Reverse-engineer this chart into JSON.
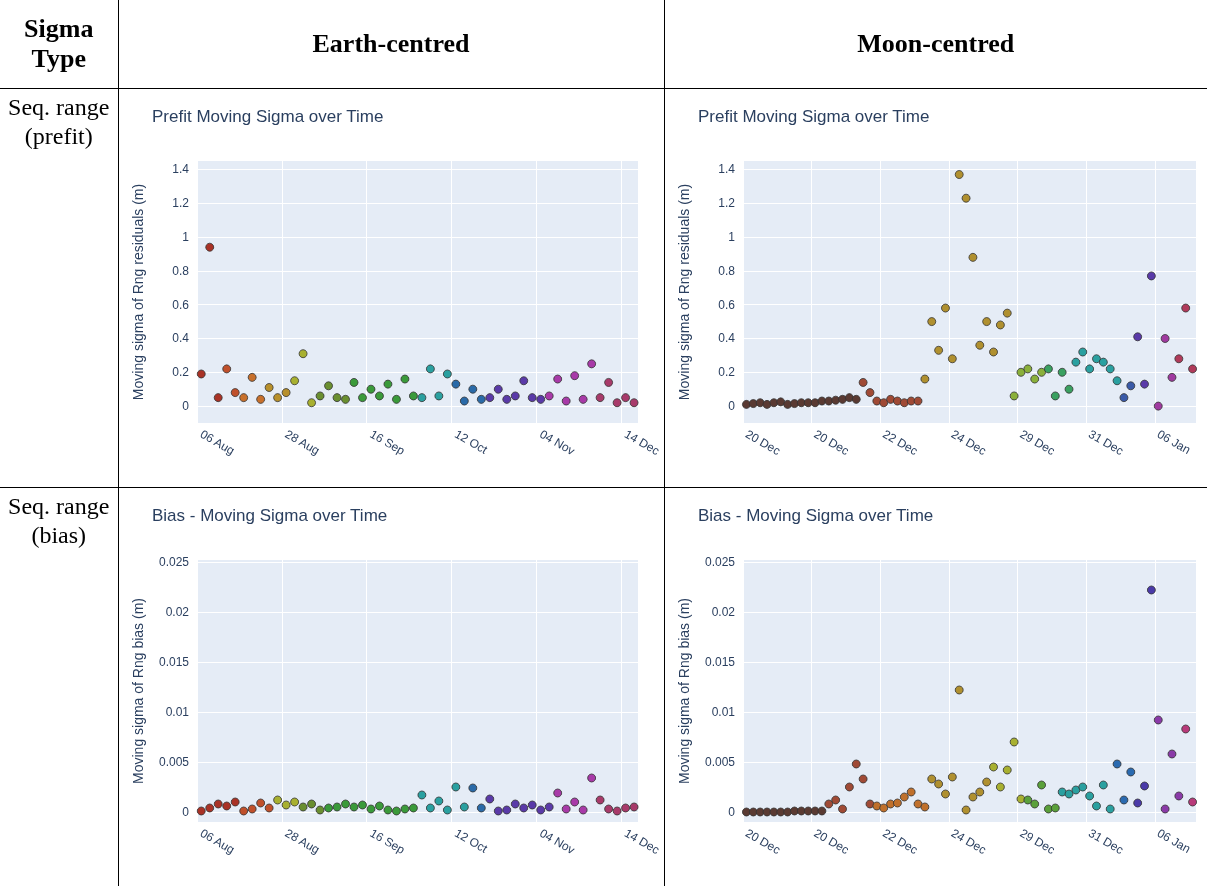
{
  "chart_data": [
    {
      "type": "other",
      "annotations": [
        "Sigma Type",
        "Earth-centred",
        "Moon-centred",
        "Seq. range (prefit)",
        "Seq. range (bias)"
      ]
    },
    {
      "type": "scatter",
      "title": "Prefit Moving Sigma over Time",
      "ylabel": "Moving sigma of Rng residuals (m)",
      "marker": "circle",
      "grid": true,
      "categories": [
        "06 Aug",
        null,
        null,
        null,
        null,
        null,
        null,
        null,
        null,
        null,
        "28 Aug",
        null,
        null,
        null,
        null,
        null,
        null,
        null,
        null,
        null,
        "16 Sep",
        null,
        null,
        null,
        null,
        null,
        null,
        null,
        null,
        null,
        "12 Oct",
        null,
        null,
        null,
        null,
        null,
        null,
        null,
        null,
        null,
        "04 Nov",
        null,
        null,
        null,
        null,
        null,
        null,
        null,
        null,
        null,
        "14 Dec",
        null
      ],
      "ylim": [
        -0.1,
        1.45
      ],
      "yticks": [
        0,
        0.2,
        0.4,
        0.6,
        0.8,
        1,
        1.2,
        1.4
      ],
      "values": [
        0.19,
        0.94,
        0.05,
        0.22,
        0.08,
        0.05,
        0.17,
        0.04,
        0.11,
        0.05,
        0.08,
        0.15,
        0.31,
        0.02,
        0.06,
        0.12,
        0.05,
        0.04,
        0.14,
        0.05,
        0.1,
        0.06,
        0.13,
        0.04,
        0.16,
        0.06,
        0.05,
        0.22,
        0.06,
        0.19,
        0.13,
        0.03,
        0.1,
        0.04,
        0.05,
        0.1,
        0.04,
        0.06,
        0.15,
        0.05,
        0.04,
        0.06,
        0.16,
        0.03,
        0.18,
        0.04,
        0.25,
        0.05,
        0.14,
        0.02,
        0.05,
        0.02
      ],
      "colors": [
        "#a93226",
        "#a93226",
        "#a93226",
        "#c0502b",
        "#c0502b",
        "#c8702b",
        "#c8702b",
        "#c8702b",
        "#b8902b",
        "#b8902b",
        "#b8902b",
        "#a8b030",
        "#a8b030",
        "#a8b030",
        "#6a8f30",
        "#6a8f30",
        "#6a8f30",
        "#6a8f30",
        "#3a9a3a",
        "#3a9a3a",
        "#3a9a3a",
        "#3a9a3a",
        "#3a9a3a",
        "#3a9a3a",
        "#3a9a3a",
        "#3a9a3a",
        "#2aa0a0",
        "#2aa0a0",
        "#2aa0a0",
        "#2aa0a0",
        "#2a6aa8",
        "#2a6aa8",
        "#2a6aa8",
        "#2a6aa8",
        "#5a3aa8",
        "#5a3aa8",
        "#5a3aa8",
        "#5a3aa8",
        "#5a3aa8",
        "#5a3aa8",
        "#5a3aa8",
        "#a83aa8",
        "#a83aa8",
        "#a83aa8",
        "#a83aa8",
        "#a83aa8",
        "#a83aa8",
        "#a83a6a",
        "#a83a6a",
        "#a83a6a",
        "#a83a6a",
        "#a83a6a"
      ]
    },
    {
      "type": "scatter",
      "title": "Prefit Moving Sigma over Time",
      "ylabel": "Moving sigma of Rng residuals (m)",
      "marker": "circle",
      "grid": true,
      "categories": [
        "20 Dec",
        null,
        null,
        null,
        null,
        null,
        null,
        null,
        null,
        null,
        "20 Dec",
        null,
        null,
        null,
        null,
        null,
        null,
        null,
        null,
        null,
        "22 Dec",
        null,
        null,
        null,
        null,
        null,
        null,
        null,
        null,
        null,
        "24 Dec",
        null,
        null,
        null,
        null,
        null,
        null,
        null,
        null,
        null,
        "29 Dec",
        null,
        null,
        null,
        null,
        null,
        null,
        null,
        null,
        null,
        "31 Dec",
        null,
        null,
        null,
        null,
        null,
        null,
        null,
        null,
        null,
        "06 Jan",
        null,
        null,
        null,
        null,
        null
      ],
      "ylim": [
        -0.1,
        1.45
      ],
      "yticks": [
        0,
        0.2,
        0.4,
        0.6,
        0.8,
        1,
        1.2,
        1.4
      ],
      "values": [
        0.01,
        0.015,
        0.02,
        0.01,
        0.02,
        0.025,
        0.01,
        0.015,
        0.02,
        0.02,
        0.02,
        0.03,
        0.03,
        0.035,
        0.04,
        0.05,
        0.04,
        0.14,
        0.08,
        0.03,
        0.02,
        0.04,
        0.03,
        0.02,
        0.03,
        0.03,
        0.16,
        0.5,
        0.33,
        0.58,
        0.28,
        1.37,
        1.23,
        0.88,
        0.36,
        0.5,
        0.32,
        0.48,
        0.55,
        0.06,
        0.2,
        0.22,
        0.16,
        0.2,
        0.22,
        0.06,
        0.2,
        0.1,
        0.26,
        0.32,
        0.22,
        0.28,
        0.26,
        0.22,
        0.15,
        0.05,
        0.12,
        0.41,
        0.13,
        0.77,
        0,
        0.4,
        0.17,
        0.28,
        0.58,
        0.22
      ],
      "colors": [
        "#5a3a32",
        "#5a3a32",
        "#5a3a32",
        "#5a3a32",
        "#5a3a32",
        "#5a3a32",
        "#5a3a32",
        "#5a3a32",
        "#5a3a32",
        "#5a3a32",
        "#5a3a32",
        "#5a3a32",
        "#5a3a32",
        "#5a3a32",
        "#5a3a32",
        "#5a3a32",
        "#5a3a32",
        "#a04a35",
        "#a04a35",
        "#a04a35",
        "#a04a35",
        "#a04a35",
        "#a04a35",
        "#a04a35",
        "#a04a35",
        "#a04a35",
        "#b0902f",
        "#b0902f",
        "#b0902f",
        "#b0902f",
        "#b0902f",
        "#b0902f",
        "#b0902f",
        "#b0902f",
        "#b0902f",
        "#b0902f",
        "#b0902f",
        "#b0902f",
        "#b0902f",
        "#8ab03a",
        "#8ab03a",
        "#8ab03a",
        "#8ab03a",
        "#8ab03a",
        "#3aa060",
        "#3aa060",
        "#3aa060",
        "#3aa060",
        "#2aa0a0",
        "#2aa0a0",
        "#2aa0a0",
        "#2aa0a0",
        "#2aa0a0",
        "#2aa0a0",
        "#2aa0a0",
        "#3a5aa8",
        "#3a5aa8",
        "#5a3aa8",
        "#5a3aa8",
        "#5a3aa8",
        "#a03aa0",
        "#a03aa0",
        "#a03aa0",
        "#b03a5a",
        "#b03a5a",
        "#b03a5a"
      ]
    },
    {
      "type": "scatter",
      "title": "Bias - Moving Sigma over Time",
      "ylabel": "Moving sigma of Rng bias (m)",
      "marker": "circle",
      "grid": true,
      "categories": [
        "06 Aug",
        null,
        null,
        null,
        null,
        null,
        null,
        null,
        null,
        null,
        "28 Aug",
        null,
        null,
        null,
        null,
        null,
        null,
        null,
        null,
        null,
        "16 Sep",
        null,
        null,
        null,
        null,
        null,
        null,
        null,
        null,
        null,
        "12 Oct",
        null,
        null,
        null,
        null,
        null,
        null,
        null,
        null,
        null,
        "04 Nov",
        null,
        null,
        null,
        null,
        null,
        null,
        null,
        null,
        null,
        "14 Dec",
        null
      ],
      "ylim": [
        -0.001,
        0.0252
      ],
      "yticks": [
        0,
        0.005,
        0.01,
        0.015,
        0.02,
        0.025
      ],
      "values": [
        0.0001,
        0.0004,
        0.0008,
        0.0006,
        0.001,
        0.0001,
        0.0003,
        0.0009,
        0.0004,
        0.0012,
        0.0007,
        0.001,
        0.0005,
        0.0008,
        0.0002,
        0.0004,
        0.0005,
        0.0008,
        0.0005,
        0.0007,
        0.0003,
        0.0006,
        0.0002,
        0.0001,
        0.0003,
        0.0004,
        0.0017,
        0.0004,
        0.0011,
        0.0002,
        0.0025,
        0.0005,
        0.0024,
        0.0004,
        0.0013,
        0.0001,
        0.0002,
        0.0008,
        0.0004,
        0.0007,
        0.0002,
        0.0005,
        0.0019,
        0.0003,
        0.001,
        0.0002,
        0.0034,
        0.0012,
        0.0003,
        0.0001,
        0.0004,
        0.0005
      ],
      "colors": [
        "#a93226",
        "#a93226",
        "#a93226",
        "#a93226",
        "#a93226",
        "#c0502b",
        "#c0502b",
        "#c0502b",
        "#c0502b",
        "#a8b030",
        "#a8b030",
        "#a8b030",
        "#6a8f30",
        "#6a8f30",
        "#6a8f30",
        "#3a9a3a",
        "#3a9a3a",
        "#3a9a3a",
        "#3a9a3a",
        "#3a9a3a",
        "#3a9a3a",
        "#3a9a3a",
        "#3a9a3a",
        "#3a9a3a",
        "#3a9a3a",
        "#3a9a3a",
        "#2aa0a0",
        "#2aa0a0",
        "#2aa0a0",
        "#2aa0a0",
        "#2aa0a0",
        "#2aa0a0",
        "#2a6aa8",
        "#2a6aa8",
        "#5a3aa8",
        "#5a3aa8",
        "#5a3aa8",
        "#5a3aa8",
        "#5a3aa8",
        "#5a3aa8",
        "#5a3aa8",
        "#5a3aa8",
        "#a83aa8",
        "#a83aa8",
        "#a83aa8",
        "#a83aa8",
        "#a83aa8",
        "#a83a6a",
        "#a83a6a",
        "#a83a6a",
        "#a83a6a",
        "#a83a6a"
      ]
    },
    {
      "type": "scatter",
      "title": "Bias - Moving Sigma over Time",
      "ylabel": "Moving sigma of Rng bias (m)",
      "marker": "circle",
      "grid": true,
      "categories": [
        "20 Dec",
        null,
        null,
        null,
        null,
        null,
        null,
        null,
        null,
        null,
        "20 Dec",
        null,
        null,
        null,
        null,
        null,
        null,
        null,
        null,
        null,
        "22 Dec",
        null,
        null,
        null,
        null,
        null,
        null,
        null,
        null,
        null,
        "24 Dec",
        null,
        null,
        null,
        null,
        null,
        null,
        null,
        null,
        null,
        "29 Dec",
        null,
        null,
        null,
        null,
        null,
        null,
        null,
        null,
        null,
        "31 Dec",
        null,
        null,
        null,
        null,
        null,
        null,
        null,
        null,
        null,
        "06 Jan",
        null,
        null,
        null,
        null,
        null
      ],
      "ylim": [
        -0.001,
        0.0252
      ],
      "yticks": [
        0,
        0.005,
        0.01,
        0.015,
        0.02,
        0.025
      ],
      "values": [
        0,
        0,
        0,
        0,
        0,
        0,
        0,
        0.0001,
        0.0001,
        0.0001,
        0.0001,
        0.0001,
        0.0008,
        0.0012,
        0.0003,
        0.0025,
        0.0048,
        0.0033,
        0.0008,
        0.0006,
        0.0004,
        0.0008,
        0.0009,
        0.0015,
        0.002,
        0.0008,
        0.0005,
        0.0033,
        0.0028,
        0.0018,
        0.0035,
        0.0122,
        0.0002,
        0.0015,
        0.002,
        0.003,
        0.0045,
        0.0025,
        0.0042,
        0.007,
        0.0013,
        0.0012,
        0.0008,
        0.0027,
        0.0003,
        0.0004,
        0.002,
        0.0018,
        0.0022,
        0.0025,
        0.0016,
        0.0006,
        0.0027,
        0.0003,
        0.0048,
        0.0012,
        0.004,
        0.0009,
        0.0026,
        0.0222,
        0.0092,
        0.0003,
        0.0058,
        0.0016,
        0.0083,
        0.001
      ],
      "colors": [
        "#5a3a32",
        "#5a3a32",
        "#5a3a32",
        "#5a3a32",
        "#5a3a32",
        "#5a3a32",
        "#5a3a32",
        "#5a3a32",
        "#5a3a32",
        "#5a3a32",
        "#5a3a32",
        "#5a3a32",
        "#a04a35",
        "#a04a35",
        "#a04a35",
        "#a04a35",
        "#a04a35",
        "#a04a35",
        "#a04a35",
        "#c0702b",
        "#c0702b",
        "#c0702b",
        "#c0702b",
        "#c0702b",
        "#c0702b",
        "#c0702b",
        "#c0702b",
        "#b0902f",
        "#b0902f",
        "#b0902f",
        "#b0902f",
        "#b0902f",
        "#b0902f",
        "#b0902f",
        "#b0902f",
        "#b0902f",
        "#a8b030",
        "#a8b030",
        "#a8b030",
        "#a8b030",
        "#a8b030",
        "#5aa03a",
        "#5aa03a",
        "#5aa03a",
        "#5aa03a",
        "#5aa03a",
        "#2aa0a0",
        "#2aa0a0",
        "#2aa0a0",
        "#2aa0a0",
        "#2aa0a0",
        "#2aa0a0",
        "#2aa0a0",
        "#2aa0a0",
        "#2a6ab0",
        "#2a6ab0",
        "#2a6ab0",
        "#4a3aa8",
        "#4a3aa8",
        "#4a3aa8",
        "#8a3aa8",
        "#8a3aa8",
        "#8a3aa8",
        "#8a3aa8",
        "#b83a7a",
        "#b83a7a"
      ]
    }
  ]
}
